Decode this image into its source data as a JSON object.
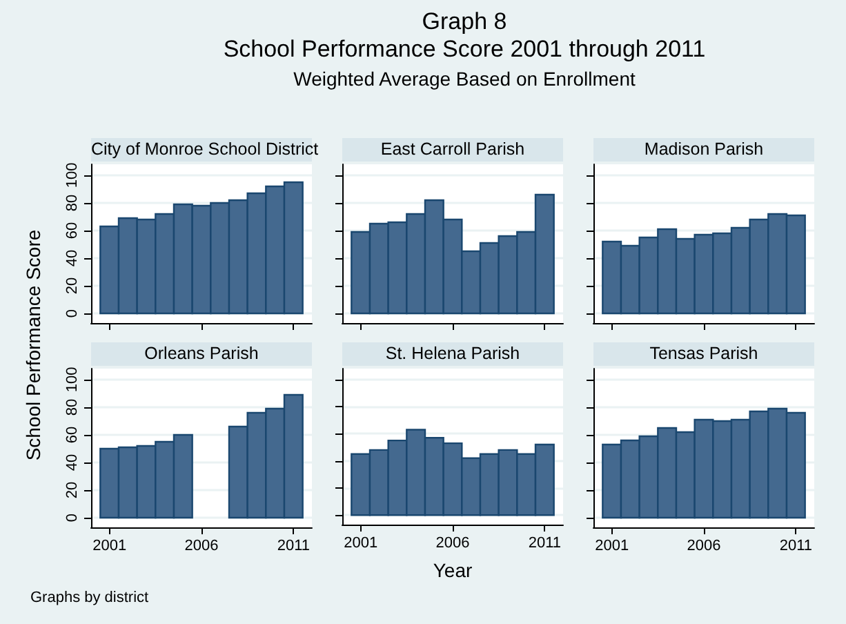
{
  "chart_data": [
    {
      "type": "bar",
      "title": "City of Monroe School District",
      "ylabel": "School Performance Score",
      "annotations": [
        "Graph 8",
        "School Performance Score 2001 through 2011",
        "Weighted Average Based on Enrollment",
        "Graphs by district"
      ],
      "x": [
        2001,
        2002,
        2003,
        2004,
        2005,
        2006,
        2007,
        2008,
        2009,
        2010,
        2011
      ],
      "series": [
        {
          "color": "#44698f",
          "values": [
            63,
            69,
            68,
            72,
            79,
            78,
            80,
            82,
            87,
            92,
            95
          ]
        }
      ],
      "xlim": [
        2000,
        2012
      ],
      "xticks": [
        2001,
        2006,
        2011
      ],
      "ylim": [
        -7,
        108
      ],
      "yticks": [
        0,
        20,
        40,
        60,
        80,
        100
      ],
      "grid": "y",
      "tick_labels": "y"
    },
    {
      "type": "bar",
      "title": "East Carroll Parish",
      "x": [
        2001,
        2002,
        2003,
        2004,
        2005,
        2006,
        2007,
        2008,
        2009,
        2010,
        2011
      ],
      "series": [
        {
          "color": "#44698f",
          "values": [
            59,
            65,
            66,
            72,
            82,
            68,
            45,
            51,
            56,
            59,
            86
          ]
        }
      ],
      "xlim": [
        2000,
        2012
      ],
      "xticks": [
        2001,
        2006,
        2011
      ],
      "ylim": [
        -7,
        108
      ],
      "yticks": [
        0,
        20,
        40,
        60,
        80,
        100
      ],
      "grid": "y",
      "tick_labels": false
    },
    {
      "type": "bar",
      "title": "Madison Parish",
      "x": [
        2001,
        2002,
        2003,
        2004,
        2005,
        2006,
        2007,
        2008,
        2009,
        2010,
        2011
      ],
      "series": [
        {
          "color": "#44698f",
          "values": [
            52,
            49,
            55,
            61,
            54,
            57,
            58,
            62,
            68,
            72,
            71
          ]
        }
      ],
      "xlim": [
        2000,
        2012
      ],
      "xticks": [
        2001,
        2006,
        2011
      ],
      "ylim": [
        -7,
        108
      ],
      "yticks": [
        0,
        20,
        40,
        60,
        80,
        100
      ],
      "grid": "y",
      "tick_labels": false
    },
    {
      "type": "bar",
      "title": "Orleans Parish",
      "x": [
        2001,
        2002,
        2003,
        2004,
        2005,
        2006,
        2007,
        2008,
        2009,
        2010,
        2011
      ],
      "series": [
        {
          "color": "#44698f",
          "values": [
            50,
            51,
            52,
            55,
            60,
            null,
            null,
            66,
            76,
            79,
            89
          ]
        }
      ],
      "xlim": [
        2000,
        2012
      ],
      "xticks": [
        2001,
        2006,
        2011
      ],
      "ylim": [
        -7,
        108
      ],
      "yticks": [
        0,
        20,
        40,
        60,
        80,
        100
      ],
      "grid": "y"
    },
    {
      "type": "bar",
      "title": "St. Helena Parish",
      "xlabel": "Year",
      "x": [
        2001,
        2002,
        2003,
        2004,
        2005,
        2006,
        2007,
        2008,
        2009,
        2010,
        2011
      ],
      "series": [
        {
          "color": "#44698f",
          "values": [
            45,
            48,
            55,
            63,
            57,
            53,
            42,
            45,
            48,
            45,
            52
          ]
        }
      ],
      "xlim": [
        2000,
        2012
      ],
      "xticks": [
        2001,
        2006,
        2011
      ],
      "ylim": [
        -7,
        108
      ],
      "yticks": [
        0,
        20,
        40,
        60,
        80,
        100
      ],
      "grid": "y",
      "tick_labels": "x"
    },
    {
      "type": "bar",
      "title": "Tensas Parish",
      "x": [
        2001,
        2002,
        2003,
        2004,
        2005,
        2006,
        2007,
        2008,
        2009,
        2010,
        2011
      ],
      "series": [
        {
          "color": "#44698f",
          "values": [
            53,
            56,
            59,
            65,
            62,
            71,
            70,
            71,
            77,
            79,
            76
          ]
        }
      ],
      "xlim": [
        2000,
        2012
      ],
      "xticks": [
        2001,
        2006,
        2011
      ],
      "ylim": [
        -7,
        108
      ],
      "yticks": [
        0,
        20,
        40,
        60,
        80,
        100
      ],
      "grid": "y",
      "tick_labels": "x"
    }
  ]
}
